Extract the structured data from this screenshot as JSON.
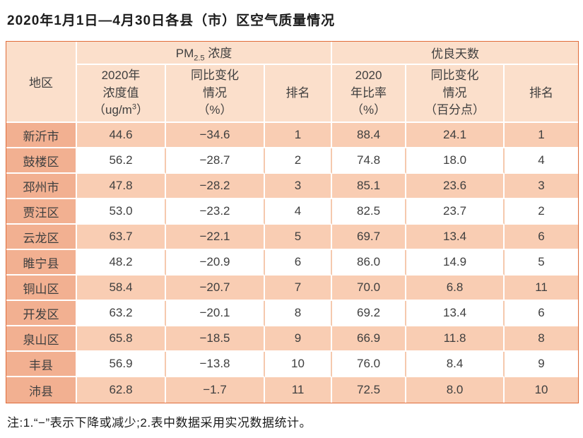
{
  "title": "2020年1月1日—4月30日各县（市）区空气质量情况",
  "note": "注:1.“−”表示下降或减少;2.表中数据采用实况数据统计。",
  "colors": {
    "outer_border": "#df6c3a",
    "region_column_bg": "#f2b091",
    "shaded_row_bg": "#f9cdb3",
    "header_bg": "#fbdfcb"
  },
  "table": {
    "header": {
      "region": "地区",
      "pm_prefix": "PM",
      "pm_sub": "2.5",
      "pm_suffix": " 浓度",
      "good_days": "优良天数",
      "conc_lines": "2020年\n浓度值\n",
      "conc_unit_pre": "（ug/m",
      "conc_unit_sup": "3",
      "conc_unit_post": "）",
      "yoy_pct": "同比变化\n情况\n（%）",
      "rank1": "排名",
      "ratio": "2020\n年比率\n（%）",
      "yoy_pts": "同比变化\n情况\n（百分点）",
      "rank2": "排名"
    },
    "rows": [
      {
        "region": "新沂市",
        "conc": "44.6",
        "yoy_pct": "−34.6",
        "rank1": "1",
        "ratio": "88.4",
        "yoy_pts": "24.1",
        "rank2": "1"
      },
      {
        "region": "鼓楼区",
        "conc": "56.2",
        "yoy_pct": "−28.7",
        "rank1": "2",
        "ratio": "74.8",
        "yoy_pts": "18.0",
        "rank2": "4"
      },
      {
        "region": "邳州市",
        "conc": "47.8",
        "yoy_pct": "−28.2",
        "rank1": "3",
        "ratio": "85.1",
        "yoy_pts": "23.6",
        "rank2": "3"
      },
      {
        "region": "贾汪区",
        "conc": "53.0",
        "yoy_pct": "−23.2",
        "rank1": "4",
        "ratio": "82.5",
        "yoy_pts": "23.7",
        "rank2": "2"
      },
      {
        "region": "云龙区",
        "conc": "63.7",
        "yoy_pct": "−22.1",
        "rank1": "5",
        "ratio": "69.7",
        "yoy_pts": "13.4",
        "rank2": "6"
      },
      {
        "region": "睢宁县",
        "conc": "48.2",
        "yoy_pct": "−20.9",
        "rank1": "6",
        "ratio": "86.0",
        "yoy_pts": "14.9",
        "rank2": "5"
      },
      {
        "region": "铜山区",
        "conc": "58.4",
        "yoy_pct": "−20.7",
        "rank1": "7",
        "ratio": "70.0",
        "yoy_pts": "6.8",
        "rank2": "11"
      },
      {
        "region": "开发区",
        "conc": "63.2",
        "yoy_pct": "−20.1",
        "rank1": "8",
        "ratio": "69.2",
        "yoy_pts": "13.4",
        "rank2": "6"
      },
      {
        "region": "泉山区",
        "conc": "65.8",
        "yoy_pct": "−18.5",
        "rank1": "9",
        "ratio": "66.9",
        "yoy_pts": "11.8",
        "rank2": "8"
      },
      {
        "region": "丰县",
        "conc": "56.9",
        "yoy_pct": "−13.8",
        "rank1": "10",
        "ratio": "76.0",
        "yoy_pts": "8.4",
        "rank2": "9"
      },
      {
        "region": "沛县",
        "conc": "62.8",
        "yoy_pct": "−1.7",
        "rank1": "11",
        "ratio": "72.5",
        "yoy_pts": "8.0",
        "rank2": "10"
      }
    ]
  }
}
